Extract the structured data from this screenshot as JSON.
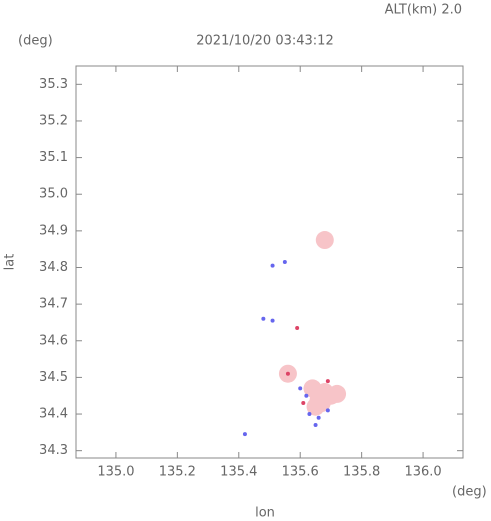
{
  "chart_data": {
    "type": "scatter",
    "title": "2021/10/20 03:43:12",
    "subtitle": "ALT(km) 2.0",
    "x_label": "lon",
    "y_label": "lat",
    "x_unit": "(deg)",
    "y_unit": "(deg)",
    "xlim": [
      134.87,
      136.13
    ],
    "ylim": [
      34.28,
      35.35
    ],
    "xticks": [
      {
        "value": 135.0,
        "label": "135.0"
      },
      {
        "value": 135.2,
        "label": "135.2"
      },
      {
        "value": 135.4,
        "label": "135.4"
      },
      {
        "value": 135.6,
        "label": "135.6"
      },
      {
        "value": 135.8,
        "label": "135.8"
      },
      {
        "value": 136.0,
        "label": "136.0"
      }
    ],
    "yticks": [
      34.3,
      34.4,
      34.5,
      34.6,
      34.7,
      34.8,
      34.9,
      {
        "value": 35.0,
        "label": "35.0"
      },
      35.1,
      35.2,
      35.3
    ],
    "series": [
      {
        "color": "#f7c4c8",
        "x": [
          135.66,
          135.68,
          135.65,
          135.7,
          135.64,
          135.67,
          135.72,
          135.68,
          135.56
        ],
        "values": [
          34.44,
          34.46,
          34.42,
          34.45,
          34.47,
          34.43,
          34.455,
          34.875,
          34.51
        ]
      },
      {
        "color": "#6666ee",
        "x": [
          135.51,
          135.55,
          135.48,
          135.51,
          135.6,
          135.42,
          135.63,
          135.66,
          135.65,
          135.69,
          135.62
        ],
        "values": [
          34.805,
          34.815,
          34.66,
          34.655,
          34.47,
          34.345,
          34.4,
          34.39,
          34.37,
          34.41,
          34.45
        ]
      },
      {
        "color": "#dd4466",
        "x": [
          135.59,
          135.56,
          135.69,
          135.61
        ],
        "values": [
          34.635,
          34.51,
          34.49,
          34.43
        ]
      }
    ]
  }
}
